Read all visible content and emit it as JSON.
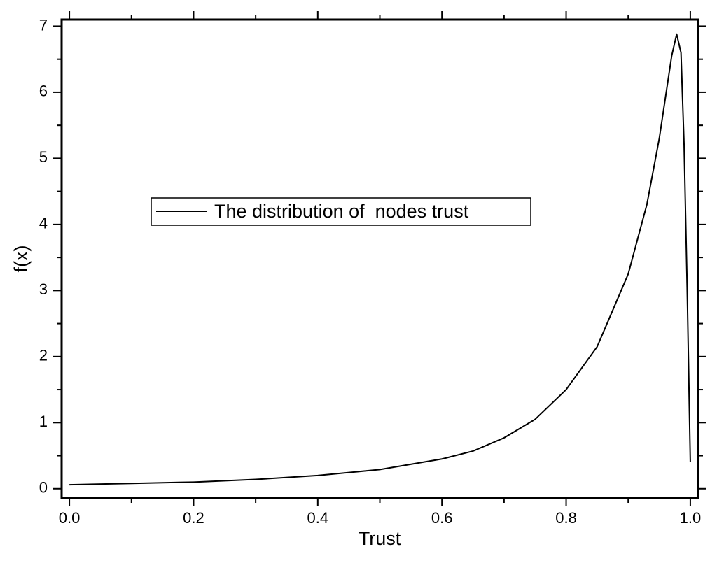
{
  "chart_data": {
    "type": "line",
    "x_label": "Trust",
    "y_label": "f(x)",
    "series": [
      {
        "name": "The distribution of  nodes trust",
        "color": "#000000",
        "x": [
          0,
          0.1,
          0.2,
          0.3,
          0.4,
          0.5,
          0.6,
          0.65,
          0.7,
          0.75,
          0.8,
          0.85,
          0.9,
          0.93,
          0.95,
          0.97,
          0.978,
          0.985,
          0.99,
          0.995,
          1.0
        ],
        "values": [
          0.06,
          0.08,
          0.1,
          0.14,
          0.2,
          0.29,
          0.45,
          0.57,
          0.77,
          1.05,
          1.5,
          2.15,
          3.25,
          4.3,
          5.3,
          6.55,
          6.88,
          6.6,
          5.2,
          3.0,
          0.4
        ]
      }
    ],
    "xlim": [
      -0.0125,
      1.0125
    ],
    "ylim": [
      -0.14,
      7.1
    ],
    "xticks": [
      {
        "value": 0,
        "label": "0.0"
      },
      0.2,
      0.4,
      0.6,
      0.8,
      {
        "value": 1,
        "label": "1.0"
      }
    ],
    "yticks": [
      0,
      1,
      2,
      3,
      4,
      5,
      6,
      7
    ],
    "xminorticks": [
      0.1,
      0.3,
      0.5,
      0.7,
      0.9
    ],
    "yminorticks": [
      0.5,
      1.5,
      2.5,
      3.5,
      4.5,
      5.5,
      6.5
    ],
    "grid": false,
    "legend": "center-left"
  }
}
